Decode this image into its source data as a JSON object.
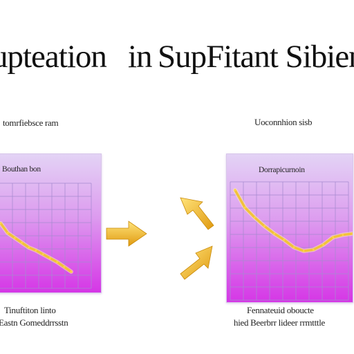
{
  "title": {
    "left": "upteation",
    "middle": "in",
    "right": "SupFitant Sibien"
  },
  "left_chart": {
    "top_caption": "tomrfiebsce ram",
    "inner_label": "Bouthan bon",
    "bottom_caption_1": "Tinuftiton linto",
    "bottom_caption_2": "Eastn Gomeddrrsstn"
  },
  "right_chart": {
    "top_caption": "Uoconnhion sisb",
    "inner_label": "Dorrapicurnoin",
    "bottom_caption_1": "Fennateuid oboucte",
    "bottom_caption_2": "hied Beerbrr lideer rrmtttle"
  },
  "colors": {
    "panel_top": "#e3d3f5",
    "panel_bottom": "#d536e6",
    "grid": "#a68ad0",
    "line": "#f2c23a",
    "arrow": "#f0b828"
  },
  "chart_data": [
    {
      "type": "line",
      "title": "",
      "xlabel": "",
      "ylabel": "",
      "grid": true,
      "series": [
        {
          "x": [
            0,
            1,
            2,
            3,
            4,
            5,
            6,
            7,
            8,
            9,
            10
          ],
          "values": [
            6.0,
            5.0,
            4.5,
            4.0,
            3.5,
            3.2,
            2.8,
            2.4,
            2.0,
            1.5,
            1.0
          ]
        }
      ]
    },
    {
      "type": "line",
      "title": "",
      "xlabel": "",
      "ylabel": "",
      "grid": true,
      "series": [
        {
          "x": [
            0,
            1,
            2,
            3,
            4,
            5,
            6,
            7,
            8,
            9,
            10,
            11,
            12
          ],
          "values": [
            7.4,
            6.0,
            5.2,
            4.5,
            3.9,
            3.4,
            2.8,
            2.5,
            2.6,
            3.0,
            3.6,
            3.8,
            3.9
          ]
        }
      ]
    }
  ]
}
